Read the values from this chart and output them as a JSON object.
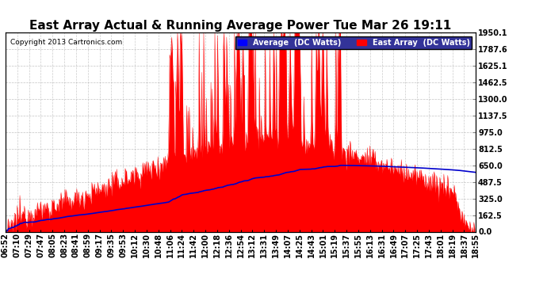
{
  "title": "East Array Actual & Running Average Power Tue Mar 26 19:11",
  "copyright": "Copyright 2013 Cartronics.com",
  "legend_avg": "Average  (DC Watts)",
  "legend_east": "East Array  (DC Watts)",
  "ylabel_right_ticks": [
    0.0,
    162.5,
    325.0,
    487.5,
    650.0,
    812.5,
    975.0,
    1137.5,
    1300.0,
    1462.5,
    1625.1,
    1787.6,
    1950.1
  ],
  "ymax": 1950.1,
  "ymin": 0.0,
  "background_color": "#ffffff",
  "plot_bg_color": "#ffffff",
  "grid_color": "#aaaaaa",
  "red_color": "#ff0000",
  "avg_line_color": "#0000cc",
  "fill_color": "#ff0000",
  "title_fontsize": 11,
  "tick_fontsize": 7,
  "xtick_labels": [
    "06:52",
    "07:10",
    "07:29",
    "07:47",
    "08:05",
    "08:23",
    "08:41",
    "08:59",
    "09:17",
    "09:35",
    "09:53",
    "10:12",
    "10:30",
    "10:48",
    "11:06",
    "11:24",
    "11:42",
    "12:00",
    "12:18",
    "12:36",
    "12:54",
    "13:12",
    "13:31",
    "13:49",
    "14:07",
    "14:25",
    "14:43",
    "15:01",
    "15:19",
    "15:37",
    "15:55",
    "16:13",
    "16:31",
    "16:49",
    "17:07",
    "17:25",
    "17:43",
    "18:01",
    "18:19",
    "18:37",
    "18:55"
  ]
}
